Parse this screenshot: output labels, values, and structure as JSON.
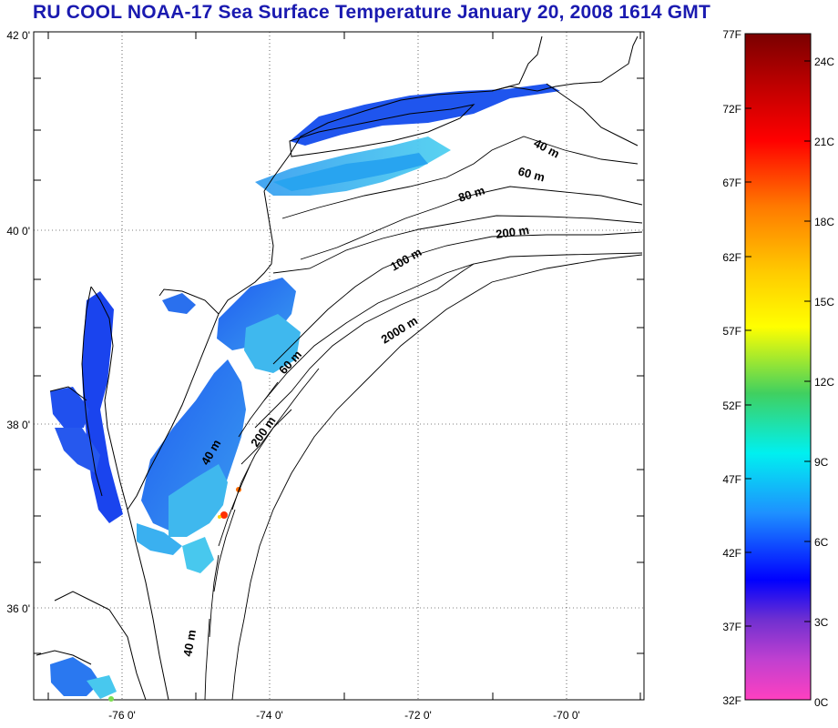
{
  "title": "RU COOL  NOAA-17 Sea Surface Temperature January 20, 2008 1614 GMT",
  "map": {
    "lat_labels": [
      "42 0'",
      "40 0'",
      "38 0'",
      "36 0'"
    ],
    "lon_labels": [
      "-76 0'",
      "-74 0'",
      "-72 0'",
      "-70 0'"
    ],
    "contour_labels": [
      "40 m",
      "60 m",
      "80 m",
      "200 m",
      "100 m",
      "2000 m",
      "60 m",
      "200 m",
      "40 m",
      "40 m"
    ]
  },
  "colorbar": {
    "fahrenheit_labels": [
      "77F",
      "72F",
      "67F",
      "62F",
      "57F",
      "52F",
      "47F",
      "42F",
      "37F",
      "32F"
    ],
    "celsius_labels": [
      "24C",
      "21C",
      "18C",
      "15C",
      "12C",
      "9C",
      "6C",
      "3C",
      "0C"
    ],
    "colors": [
      "#8b0000",
      "#ff0000",
      "#ff7f00",
      "#ffff00",
      "#3cd24a",
      "#00ffff",
      "#1e90ff",
      "#0000ff",
      "#8040c0",
      "#ff40c0"
    ]
  }
}
